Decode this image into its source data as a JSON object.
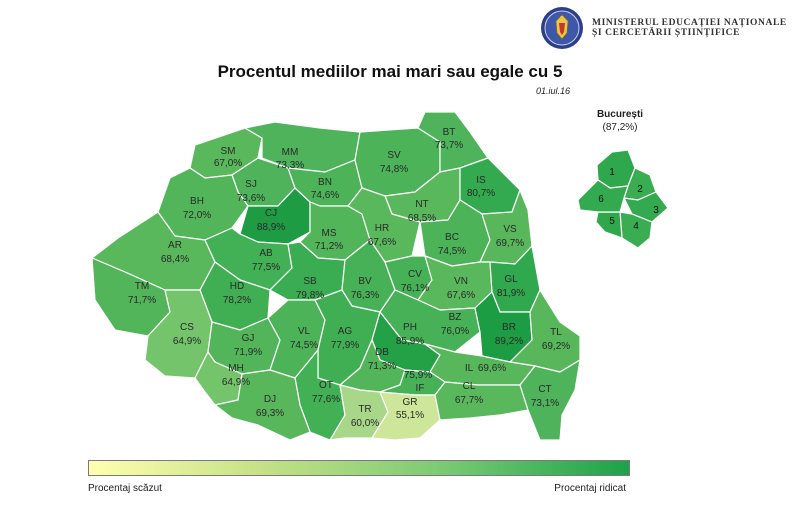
{
  "header": {
    "ministry_line1": "Ministerul Educației Naționale",
    "ministry_line2": "și Cercetării Științifice",
    "title": "Procentul mediilor mai mari sau egale cu 5",
    "date": "01.iul.16"
  },
  "bucharest": {
    "name": "București",
    "percent": "(87,2%)",
    "sectors": [
      "1",
      "2",
      "3",
      "4",
      "5",
      "6"
    ]
  },
  "legend": {
    "low_label": "Procentaj scăzut",
    "high_label": "Procentaj ridicat",
    "low_color": "#ffffb2",
    "high_color": "#1ca24a"
  },
  "counties": [
    {
      "code": "SM",
      "value": "67,0%",
      "fill": "#5ab85c"
    },
    {
      "code": "MM",
      "value": "73,3%",
      "fill": "#4eb35a"
    },
    {
      "code": "BT",
      "value": "73,7%",
      "fill": "#4eb35a"
    },
    {
      "code": "SV",
      "value": "74,8%",
      "fill": "#4cb358"
    },
    {
      "code": "SJ",
      "value": "73,6%",
      "fill": "#4eb35a"
    },
    {
      "code": "BN",
      "value": "74,6%",
      "fill": "#4cb358"
    },
    {
      "code": "IS",
      "value": "80,7%",
      "fill": "#34aa50"
    },
    {
      "code": "BH",
      "value": "72,0%",
      "fill": "#52b55a"
    },
    {
      "code": "CJ",
      "value": "88,9%",
      "fill": "#1e9c44"
    },
    {
      "code": "NT",
      "value": "68,5%",
      "fill": "#5ab85c"
    },
    {
      "code": "MS",
      "value": "71,2%",
      "fill": "#52b55a"
    },
    {
      "code": "HR",
      "value": "67,6%",
      "fill": "#5ab85c"
    },
    {
      "code": "BC",
      "value": "74,5%",
      "fill": "#4cb358"
    },
    {
      "code": "VS",
      "value": "69,7%",
      "fill": "#58b75b"
    },
    {
      "code": "AR",
      "value": "68,4%",
      "fill": "#5ab85c"
    },
    {
      "code": "AB",
      "value": "77,5%",
      "fill": "#42b055"
    },
    {
      "code": "SB",
      "value": "79,8%",
      "fill": "#3aad52"
    },
    {
      "code": "BV",
      "value": "76,3%",
      "fill": "#46b156"
    },
    {
      "code": "CV",
      "value": "76,1%",
      "fill": "#46b156"
    },
    {
      "code": "VN",
      "value": "67,6%",
      "fill": "#5ab85c"
    },
    {
      "code": "GL",
      "value": "81,9%",
      "fill": "#30a94e"
    },
    {
      "code": "TM",
      "value": "71,7%",
      "fill": "#52b55a"
    },
    {
      "code": "HD",
      "value": "78,2%",
      "fill": "#40af54"
    },
    {
      "code": "BZ",
      "value": "76,0%",
      "fill": "#46b156"
    },
    {
      "code": "CS",
      "value": "64,9%",
      "fill": "#74c46c"
    },
    {
      "code": "GJ",
      "value": "71,9%",
      "fill": "#52b55a"
    },
    {
      "code": "VL",
      "value": "74,5%",
      "fill": "#4cb358"
    },
    {
      "code": "AG",
      "value": "77,9%",
      "fill": "#40af54"
    },
    {
      "code": "PH",
      "value": "85,9%",
      "fill": "#24a047"
    },
    {
      "code": "BR",
      "value": "89,2%",
      "fill": "#1c9c43"
    },
    {
      "code": "TL",
      "value": "69,2%",
      "fill": "#58b75b"
    },
    {
      "code": "DB",
      "value": "71,3%",
      "fill": "#52b55a"
    },
    {
      "code": "IL",
      "value": "69,6%",
      "fill": "#58b75b"
    },
    {
      "code": "MH",
      "value": "64,9%",
      "fill": "#74c46c"
    },
    {
      "code": "OT",
      "value": "77,6%",
      "fill": "#42b055"
    },
    {
      "code": "IF",
      "value": "75,9%",
      "fill": "#46b156"
    },
    {
      "code": "DJ",
      "value": "69,3%",
      "fill": "#58b75b"
    },
    {
      "code": "TR",
      "value": "60,0%",
      "fill": "#a8d789"
    },
    {
      "code": "GR",
      "value": "55,1%",
      "fill": "#cde69a"
    },
    {
      "code": "CL",
      "value": "67,7%",
      "fill": "#5ab85c"
    },
    {
      "code": "CT",
      "value": "73,1%",
      "fill": "#4eb35a"
    }
  ]
}
